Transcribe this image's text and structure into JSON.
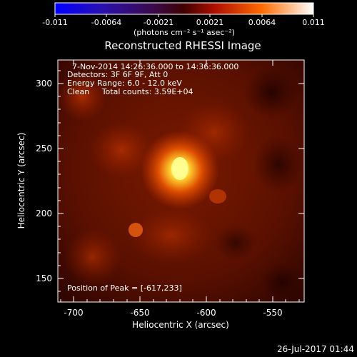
{
  "colorbar": {
    "ticks": [
      "-0.011",
      "-0.0064",
      "-0.0021",
      "0.0021",
      "0.0064",
      "0.011"
    ],
    "units": "(photons cm⁻² s⁻¹ asec⁻²)"
  },
  "plot": {
    "title": "Reconstructed RHESSI Image",
    "info_lines": [
      "7-Nov-2014 14:26:36.000 to 14:36:36.000",
      "Detectors: 3F 6F 9F, Att 0",
      "Energy Range: 6.0 - 12.0 keV",
      "Clean     Total counts: 3.59E+04"
    ],
    "peak_text": "Position of Peak = [-617,233]",
    "xlabel": "Heliocentric X (arcsec)",
    "ylabel": "Heliocentric Y (arcsec)",
    "xticks": [
      "-700",
      "-650",
      "-600",
      "-550"
    ],
    "yticks": [
      "300",
      "250",
      "200",
      "150"
    ]
  },
  "footer": {
    "timestamp": "26-Jul-2017 01:44"
  }
}
